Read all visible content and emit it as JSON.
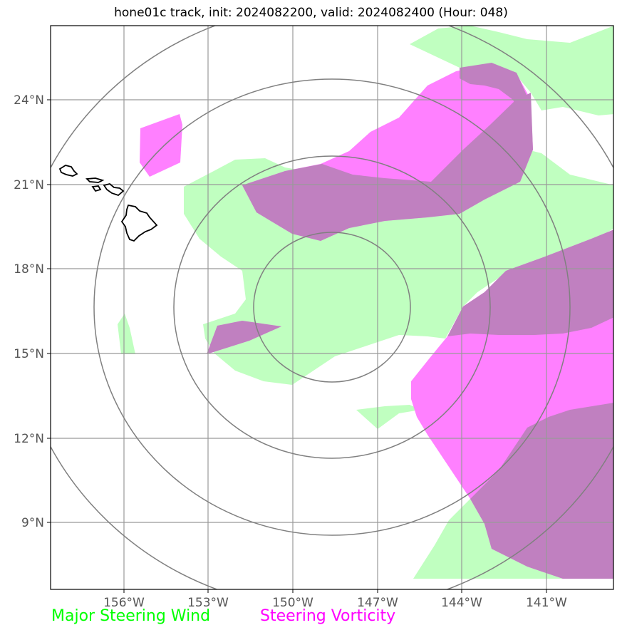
{
  "title": "hone01c track, init: 2024082200, valid: 2024082400 (Hour: 048)",
  "lat_labels": [
    "24°N",
    "21°N",
    "18°N",
    "15°N",
    "12°N",
    "9°N"
  ],
  "lon_labels": [
    "156°W",
    "153°W",
    "150°W",
    "147°W",
    "144°W",
    "141°W"
  ],
  "legend": {
    "wind_label": "Major Steering Wind",
    "vorticity_label": "Steering Vorticity"
  },
  "colors": {
    "wind": "#c0ffc0",
    "vorticity": "#ff80ff",
    "overlap": "#c080c0",
    "wind_text": "#00ff00",
    "vorticity_text": "#ff00ff",
    "grid": "#999999",
    "range_rings": "#808080",
    "coastline": "#000000"
  },
  "map_features": [
    "hawaiian-islands",
    "range-rings",
    "steering-wind-areas",
    "steering-vorticity-areas"
  ]
}
